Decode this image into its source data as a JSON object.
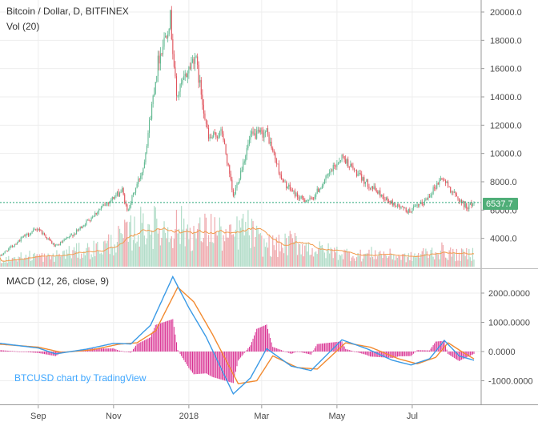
{
  "header": {
    "title": "Bitcoin / Dollar, D, BITFINEX",
    "volume_label": "Vol (20)",
    "macd_label": "MACD (12, 26, close, 9)",
    "watermark": "BTCUSD chart by TradingView"
  },
  "colors": {
    "up": "#5fb890",
    "down": "#e0545d",
    "vol_up": "#b3ddc9",
    "vol_down": "#efaaae",
    "vol_ma": "#f29b4d",
    "macd_line": "#3a9ae6",
    "signal_line": "#f28a30",
    "histogram": "#d6218a",
    "price_line": "#2aa87a",
    "price_badge": "#4fae78",
    "grid": "#eeeeee",
    "axis": "#9a9a9a"
  },
  "chart_data": [
    {
      "type": "candlestick",
      "title": "Bitcoin / Dollar, D, BITFINEX",
      "x_tick_labels": [
        "Sep",
        "Nov",
        "2018",
        "Mar",
        "May",
        "Jul"
      ],
      "y_tick_labels": [
        "20000.0",
        "18000.0",
        "16000.0",
        "14000.0",
        "12000.0",
        "10000.0",
        "8000.0",
        "6000.0",
        "4000.0"
      ],
      "ylim": [
        2000,
        20000
      ],
      "last_price": 6537.7,
      "last_price_label": "6537.7",
      "key_points": [
        {
          "date": "2017-08-01",
          "close": 2750
        },
        {
          "date": "2017-08-20",
          "close": 4100
        },
        {
          "date": "2017-09-01",
          "close": 4700
        },
        {
          "date": "2017-09-15",
          "close": 3400
        },
        {
          "date": "2017-10-01",
          "close": 4400
        },
        {
          "date": "2017-10-20",
          "close": 6000
        },
        {
          "date": "2017-11-08",
          "close": 7400
        },
        {
          "date": "2017-11-12",
          "close": 5900
        },
        {
          "date": "2017-11-25",
          "close": 9000
        },
        {
          "date": "2017-12-07",
          "close": 16500
        },
        {
          "date": "2017-12-17",
          "close": 19600
        },
        {
          "date": "2017-12-22",
          "close": 14000
        },
        {
          "date": "2018-01-06",
          "close": 17000
        },
        {
          "date": "2018-01-17",
          "close": 11000
        },
        {
          "date": "2018-01-28",
          "close": 11500
        },
        {
          "date": "2018-02-06",
          "close": 6900
        },
        {
          "date": "2018-02-20",
          "close": 11200
        },
        {
          "date": "2018-03-05",
          "close": 11500
        },
        {
          "date": "2018-03-18",
          "close": 8000
        },
        {
          "date": "2018-04-01",
          "close": 6800
        },
        {
          "date": "2018-04-10",
          "close": 6700
        },
        {
          "date": "2018-05-05",
          "close": 9800
        },
        {
          "date": "2018-05-20",
          "close": 8300
        },
        {
          "date": "2018-06-12",
          "close": 6600
        },
        {
          "date": "2018-06-28",
          "close": 5900
        },
        {
          "date": "2018-07-10",
          "close": 6500
        },
        {
          "date": "2018-07-25",
          "close": 8300
        },
        {
          "date": "2018-08-05",
          "close": 7000
        },
        {
          "date": "2018-08-14",
          "close": 6200
        },
        {
          "date": "2018-08-20",
          "close": 6537.7
        }
      ]
    },
    {
      "type": "bar",
      "title": "Vol (20)",
      "series": [
        {
          "values_relative": [
            0.15,
            0.2,
            0.25,
            0.2,
            0.3,
            0.35,
            0.4,
            0.55,
            0.75,
            0.95,
            0.8,
            0.9,
            0.7,
            0.85,
            0.6,
            0.9,
            0.5,
            0.45,
            0.55,
            0.4,
            0.35,
            0.3,
            0.25,
            0.3,
            0.25,
            0.2,
            0.3,
            0.35,
            0.25,
            0.3
          ]
        }
      ]
    },
    {
      "type": "line",
      "title": "MACD (12, 26, close, 9)",
      "y_tick_labels": [
        "2000.0000",
        "1000.0000",
        "0.0000",
        "-1000.0000"
      ],
      "ylim": [
        -1600,
        2600
      ],
      "series": [
        {
          "key_points": [
            {
              "date": "2017-08-01",
              "value": 280
            },
            {
              "date": "2017-09-01",
              "value": 120
            },
            {
              "date": "2017-09-15",
              "value": -80
            },
            {
              "date": "2017-10-10",
              "value": 80
            },
            {
              "date": "2017-11-01",
              "value": 280
            },
            {
              "date": "2017-11-15",
              "value": 260
            },
            {
              "date": "2017-12-01",
              "value": 900
            },
            {
              "date": "2017-12-19",
              "value": 2560
            },
            {
              "date": "2018-01-01",
              "value": 1500
            },
            {
              "date": "2018-01-15",
              "value": 500
            },
            {
              "date": "2018-02-06",
              "value": -1450
            },
            {
              "date": "2018-02-20",
              "value": -900
            },
            {
              "date": "2018-03-05",
              "value": 100
            },
            {
              "date": "2018-03-25",
              "value": -500
            },
            {
              "date": "2018-04-10",
              "value": -650
            },
            {
              "date": "2018-05-05",
              "value": 400
            },
            {
              "date": "2018-05-25",
              "value": 100
            },
            {
              "date": "2018-06-15",
              "value": -300
            },
            {
              "date": "2018-06-30",
              "value": -460
            },
            {
              "date": "2018-07-15",
              "value": -250
            },
            {
              "date": "2018-07-27",
              "value": 380
            },
            {
              "date": "2018-08-08",
              "value": -150
            },
            {
              "date": "2018-08-20",
              "value": -300
            }
          ]
        },
        {
          "key_points": [
            {
              "date": "2017-08-01",
              "value": 250
            },
            {
              "date": "2017-09-01",
              "value": 150
            },
            {
              "date": "2017-09-20",
              "value": -30
            },
            {
              "date": "2017-10-15",
              "value": 60
            },
            {
              "date": "2017-11-05",
              "value": 250
            },
            {
              "date": "2017-11-20",
              "value": 300
            },
            {
              "date": "2017-12-05",
              "value": 700
            },
            {
              "date": "2017-12-23",
              "value": 2200
            },
            {
              "date": "2018-01-05",
              "value": 1700
            },
            {
              "date": "2018-01-20",
              "value": 600
            },
            {
              "date": "2018-02-10",
              "value": -1100
            },
            {
              "date": "2018-02-25",
              "value": -1000
            },
            {
              "date": "2018-03-10",
              "value": -150
            },
            {
              "date": "2018-03-30",
              "value": -550
            },
            {
              "date": "2018-04-15",
              "value": -600
            },
            {
              "date": "2018-05-08",
              "value": 300
            },
            {
              "date": "2018-05-28",
              "value": 150
            },
            {
              "date": "2018-06-20",
              "value": -250
            },
            {
              "date": "2018-07-05",
              "value": -420
            },
            {
              "date": "2018-07-20",
              "value": -200
            },
            {
              "date": "2018-07-30",
              "value": 300
            },
            {
              "date": "2018-08-10",
              "value": 0
            },
            {
              "date": "2018-08-20",
              "value": -250
            }
          ]
        }
      ]
    }
  ]
}
